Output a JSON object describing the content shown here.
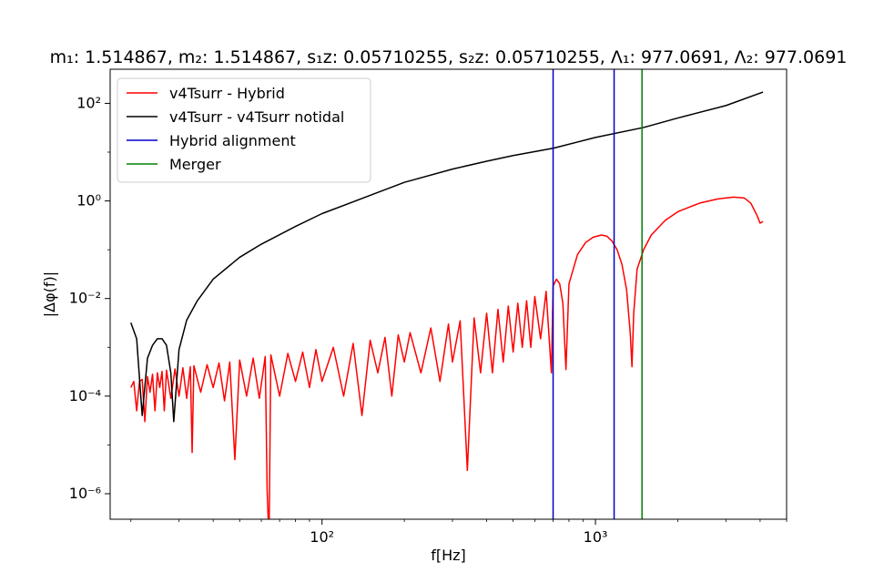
{
  "chart_data": {
    "type": "line",
    "title": "m₁: 1.514867, m₂: 1.514867, s₁z: 0.05710255, s₂z: 0.05710255, Λ₁: 977.0691, Λ₂: 977.0691",
    "xlabel": "f[Hz]",
    "ylabel": "|Δφ(f)|",
    "xscale": "log",
    "yscale": "log",
    "xlim": [
      16.8,
      5000
    ],
    "ylim": [
      3e-07,
      500
    ],
    "x_ticks": [
      {
        "value": 100,
        "label": "10²"
      },
      {
        "value": 1000,
        "label": "10³"
      }
    ],
    "y_ticks": [
      {
        "value": 1e-06,
        "label": "10⁻⁶"
      },
      {
        "value": 0.0001,
        "label": "10⁻⁴"
      },
      {
        "value": 0.01,
        "label": "10⁻²"
      },
      {
        "value": 1,
        "label": "10⁰"
      },
      {
        "value": 100,
        "label": "10²"
      }
    ],
    "grid": false,
    "legend_position": "top-left",
    "series": [
      {
        "name": "v4Tsurr - Hybrid",
        "color": "#ff0000",
        "points": [
          [
            20,
            0.00015
          ],
          [
            20.5,
            0.0002
          ],
          [
            21,
            5e-05
          ],
          [
            21.5,
            0.0002
          ],
          [
            22,
            0.00022
          ],
          [
            22.5,
            3e-05
          ],
          [
            23,
            0.00025
          ],
          [
            23.5,
            0.00012
          ],
          [
            24,
            0.00028
          ],
          [
            24.5,
            5e-05
          ],
          [
            25,
            0.0003
          ],
          [
            25.5,
            0.00015
          ],
          [
            26,
            0.00032
          ],
          [
            26.5,
            5e-05
          ],
          [
            27,
            0.00034
          ],
          [
            28,
            9e-05
          ],
          [
            29,
            0.00036
          ],
          [
            30,
            0.0001
          ],
          [
            31,
            0.00038
          ],
          [
            32,
            9e-05
          ],
          [
            33,
            0.0004
          ],
          [
            33.5,
            7e-06
          ],
          [
            34,
            0.00042
          ],
          [
            36,
            0.00012
          ],
          [
            38,
            0.00044
          ],
          [
            40,
            0.00015
          ],
          [
            42,
            0.00048
          ],
          [
            44,
            8e-05
          ],
          [
            46,
            0.0005
          ],
          [
            48,
            5e-06
          ],
          [
            50,
            0.00055
          ],
          [
            53,
            0.0001
          ],
          [
            56,
            0.0006
          ],
          [
            59,
            9e-05
          ],
          [
            62,
            0.00065
          ],
          [
            63,
            1.2e-06
          ],
          [
            64,
            1e-07
          ],
          [
            65,
            0.0007
          ],
          [
            70,
            0.0001
          ],
          [
            75,
            0.00075
          ],
          [
            80,
            0.0002
          ],
          [
            85,
            0.0008
          ],
          [
            90,
            0.00015
          ],
          [
            95,
            0.0009
          ],
          [
            100,
            0.0002
          ],
          [
            110,
            0.001
          ],
          [
            120,
            0.0001
          ],
          [
            130,
            0.0012
          ],
          [
            140,
            4e-05
          ],
          [
            150,
            0.0014
          ],
          [
            160,
            0.0003
          ],
          [
            170,
            0.0016
          ],
          [
            180,
            0.0001
          ],
          [
            190,
            0.0018
          ],
          [
            200,
            0.0005
          ],
          [
            210,
            0.002
          ],
          [
            230,
            0.0003
          ],
          [
            250,
            0.0025
          ],
          [
            270,
            0.0002
          ],
          [
            290,
            0.003
          ],
          [
            300,
            0.0005
          ],
          [
            320,
            0.0035
          ],
          [
            340,
            3e-06
          ],
          [
            360,
            0.004
          ],
          [
            380,
            0.0003
          ],
          [
            400,
            0.005
          ],
          [
            420,
            0.0003
          ],
          [
            440,
            0.006
          ],
          [
            460,
            0.0005
          ],
          [
            480,
            0.007
          ],
          [
            500,
            0.0008
          ],
          [
            520,
            0.008
          ],
          [
            540,
            0.001
          ],
          [
            560,
            0.009
          ],
          [
            580,
            0.001
          ],
          [
            600,
            0.011
          ],
          [
            630,
            0.0015
          ],
          [
            660,
            0.014
          ],
          [
            690,
            0.0003
          ],
          [
            700,
            0.018
          ],
          [
            720,
            0.025
          ],
          [
            740,
            0.02
          ],
          [
            760,
            0.008
          ],
          [
            780,
            0.00035
          ],
          [
            800,
            0.02
          ],
          [
            860,
            0.08
          ],
          [
            920,
            0.14
          ],
          [
            980,
            0.18
          ],
          [
            1050,
            0.2
          ],
          [
            1100,
            0.19
          ],
          [
            1150,
            0.15
          ],
          [
            1200,
            0.1
          ],
          [
            1250,
            0.05
          ],
          [
            1300,
            0.015
          ],
          [
            1340,
            0.002
          ],
          [
            1360,
            0.0004
          ],
          [
            1380,
            0.005
          ],
          [
            1420,
            0.04
          ],
          [
            1500,
            0.1
          ],
          [
            1600,
            0.2
          ],
          [
            1800,
            0.4
          ],
          [
            2000,
            0.6
          ],
          [
            2400,
            0.9
          ],
          [
            2800,
            1.1
          ],
          [
            3200,
            1.2
          ],
          [
            3500,
            1.15
          ],
          [
            3700,
            0.9
          ],
          [
            3900,
            0.5
          ],
          [
            4000,
            0.35
          ],
          [
            4100,
            0.38
          ]
        ]
      },
      {
        "name": "v4Tsurr - v4Tsurr notidal",
        "color": "#000000",
        "points": [
          [
            20,
            0.0032
          ],
          [
            21,
            0.0015
          ],
          [
            22,
            4e-05
          ],
          [
            23,
            0.0006
          ],
          [
            24,
            0.0011
          ],
          [
            25,
            0.0015
          ],
          [
            26,
            0.0015
          ],
          [
            27,
            0.0011
          ],
          [
            28,
            0.0003
          ],
          [
            28.7,
            3e-05
          ],
          [
            30,
            0.0009
          ],
          [
            32,
            0.0036
          ],
          [
            35,
            0.009
          ],
          [
            40,
            0.025
          ],
          [
            50,
            0.07
          ],
          [
            60,
            0.13
          ],
          [
            80,
            0.3
          ],
          [
            100,
            0.55
          ],
          [
            150,
            1.3
          ],
          [
            200,
            2.4
          ],
          [
            300,
            4.5
          ],
          [
            400,
            6.5
          ],
          [
            500,
            8.5
          ],
          [
            700,
            12
          ],
          [
            1000,
            20
          ],
          [
            1500,
            32
          ],
          [
            2000,
            50
          ],
          [
            3000,
            90
          ],
          [
            4100,
            170
          ]
        ]
      },
      {
        "name": "Hybrid alignment",
        "color": "#0000cc",
        "vlines": [
          700,
          1170
        ]
      },
      {
        "name": "Merger",
        "color": "#008000",
        "vlines": [
          1480
        ]
      }
    ]
  }
}
